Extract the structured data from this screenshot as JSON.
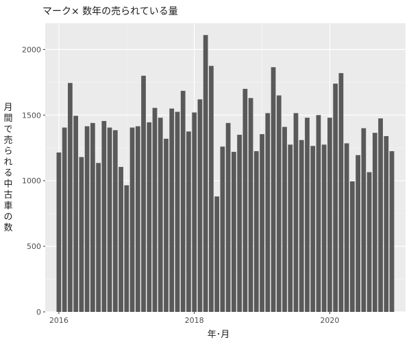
{
  "chart_data": {
    "type": "bar",
    "title": "マーク× 数年の売られている量",
    "xlabel": "年･月",
    "ylabel": "月間で売られる中古車の数",
    "x_ticks": [
      "2016",
      "2018",
      "2020"
    ],
    "y_ticks": [
      0,
      500,
      1000,
      1500,
      2000
    ],
    "ylim": [
      0,
      2200
    ],
    "grid": true,
    "bar_color": "#595959",
    "panel_color": "#ebebeb",
    "x_start": "2016-01",
    "values": [
      1215,
      1405,
      1745,
      1495,
      1180,
      1415,
      1440,
      1135,
      1455,
      1405,
      1385,
      1105,
      965,
      1405,
      1415,
      1800,
      1445,
      1555,
      1480,
      1320,
      1550,
      1525,
      1685,
      1375,
      1520,
      1620,
      2110,
      1875,
      880,
      1260,
      1440,
      1220,
      1350,
      1700,
      1630,
      1225,
      1355,
      1515,
      1865,
      1650,
      1410,
      1275,
      1515,
      1310,
      1480,
      1265,
      1500,
      1275,
      1480,
      1740,
      1820,
      1285,
      995,
      1195,
      1400,
      1065,
      1365,
      1475,
      1340,
      1225
    ]
  }
}
